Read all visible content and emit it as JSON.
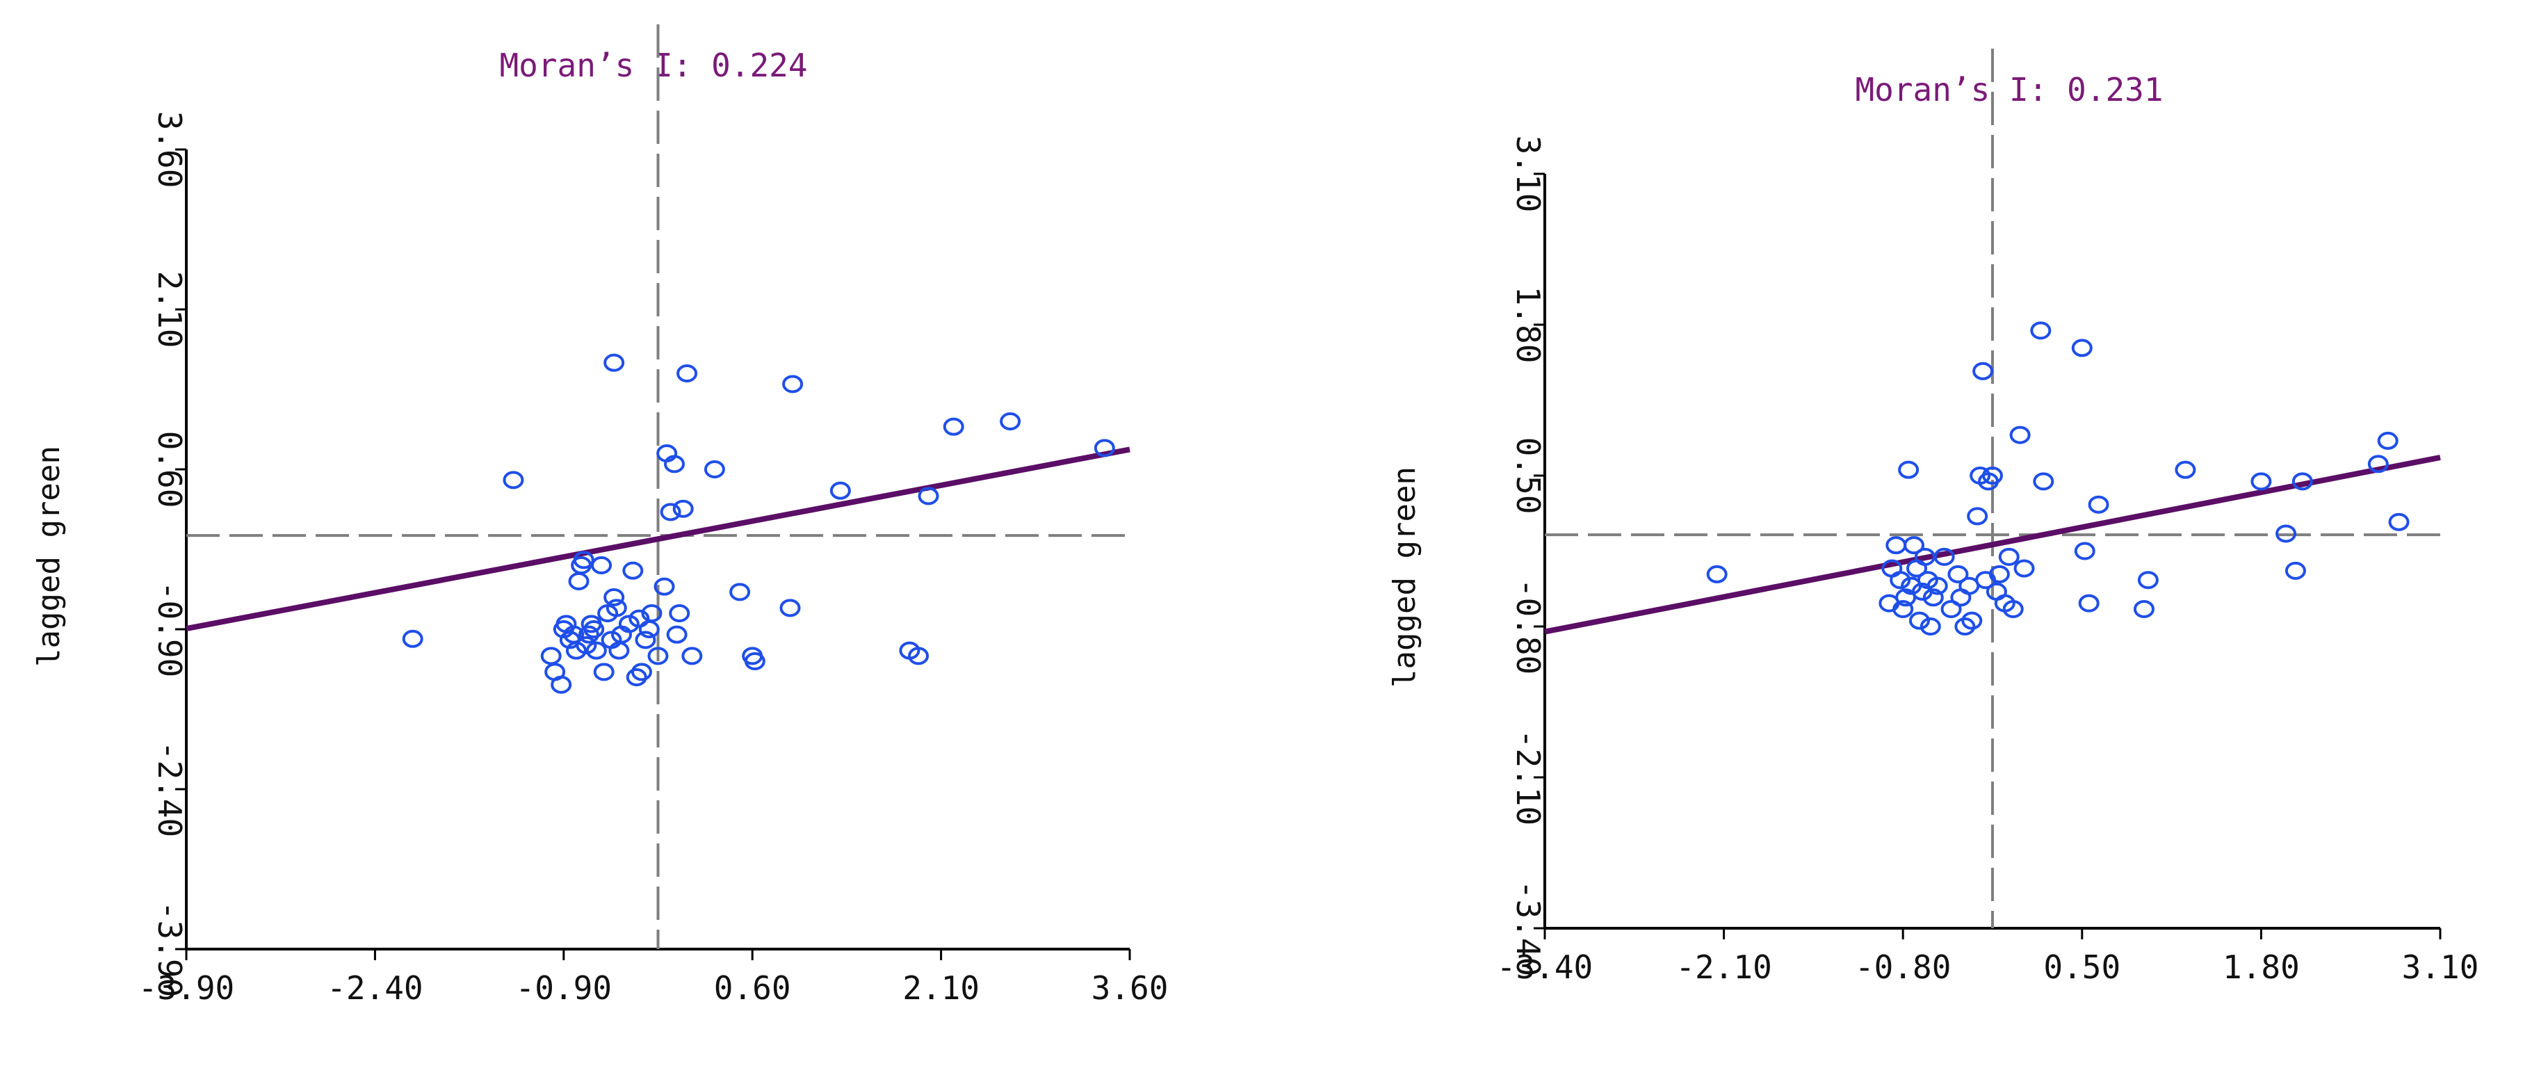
{
  "chart_data": [
    {
      "type": "scatter",
      "title": "Moran’s I: 0.224",
      "xlabel": "",
      "ylabel": "lagged green",
      "xlim": [
        -3.9,
        3.6
      ],
      "ylim": [
        -3.9,
        3.6
      ],
      "x_ticks": [
        "-3.90",
        "-2.40",
        "-0.90",
        "0.60",
        "2.10",
        "3.60"
      ],
      "y_ticks": [
        "-3.90",
        "-2.40",
        "-0.90",
        "0.60",
        "2.10",
        "3.60"
      ],
      "ref_x": -0.15,
      "ref_y": -0.02,
      "fit_line": {
        "slope": 0.224,
        "intercept": -0.02
      },
      "points": [
        [
          -2.1,
          -0.99
        ],
        [
          -1.3,
          0.5
        ],
        [
          -1.0,
          -1.15
        ],
        [
          -0.97,
          -1.3
        ],
        [
          -0.92,
          -1.42
        ],
        [
          -0.9,
          -0.9
        ],
        [
          -0.88,
          -0.85
        ],
        [
          -0.85,
          -1.0
        ],
        [
          -0.82,
          -0.95
        ],
        [
          -0.8,
          -1.1
        ],
        [
          -0.78,
          -0.45
        ],
        [
          -0.76,
          -0.3
        ],
        [
          -0.74,
          -0.25
        ],
        [
          -0.72,
          -1.05
        ],
        [
          -0.7,
          -0.95
        ],
        [
          -0.68,
          -0.85
        ],
        [
          -0.66,
          -0.9
        ],
        [
          -0.64,
          -1.1
        ],
        [
          -0.6,
          -0.3
        ],
        [
          -0.58,
          -1.3
        ],
        [
          -0.55,
          -0.75
        ],
        [
          -0.52,
          -1.0
        ],
        [
          -0.5,
          -0.6
        ],
        [
          -0.48,
          -0.7
        ],
        [
          -0.46,
          -1.1
        ],
        [
          -0.44,
          -0.95
        ],
        [
          -0.5,
          1.6
        ],
        [
          -0.38,
          -0.85
        ],
        [
          -0.35,
          -0.35
        ],
        [
          -0.32,
          -1.35
        ],
        [
          -0.3,
          -0.8
        ],
        [
          -0.28,
          -1.3
        ],
        [
          -0.25,
          -1.0
        ],
        [
          -0.22,
          -0.9
        ],
        [
          -0.2,
          -0.75
        ],
        [
          -0.15,
          -1.15
        ],
        [
          -0.1,
          -0.5
        ],
        [
          -0.08,
          0.75
        ],
        [
          -0.05,
          0.2
        ],
        [
          -0.02,
          0.65
        ],
        [
          0.0,
          -0.95
        ],
        [
          0.02,
          -0.75
        ],
        [
          0.05,
          0.23
        ],
        [
          0.08,
          1.5
        ],
        [
          0.12,
          -1.15
        ],
        [
          0.3,
          0.6
        ],
        [
          0.5,
          -0.55
        ],
        [
          0.6,
          -1.15
        ],
        [
          0.62,
          -1.2
        ],
        [
          0.9,
          -0.7
        ],
        [
          0.92,
          1.4
        ],
        [
          1.3,
          0.4
        ],
        [
          1.85,
          -1.1
        ],
        [
          1.92,
          -1.15
        ],
        [
          2.0,
          0.35
        ],
        [
          2.2,
          1.0
        ],
        [
          2.65,
          1.05
        ],
        [
          3.4,
          0.8
        ]
      ]
    },
    {
      "type": "scatter",
      "title": "Moran’s I: 0.231",
      "xlabel": "",
      "ylabel": "lagged green",
      "xlim": [
        -3.4,
        3.1
      ],
      "ylim": [
        -3.4,
        3.1
      ],
      "x_ticks": [
        "-3.40",
        "-2.10",
        "-0.80",
        "0.50",
        "1.80",
        "3.10"
      ],
      "y_ticks": [
        "-3.40",
        "-2.10",
        "-0.80",
        "0.50",
        "1.80",
        "3.10"
      ],
      "ref_x": -0.15,
      "ref_y": -0.01,
      "fit_line": {
        "slope": 0.231,
        "intercept": -0.06
      },
      "points": [
        [
          -2.15,
          -0.35
        ],
        [
          -0.9,
          -0.6
        ],
        [
          -0.88,
          -0.3
        ],
        [
          -0.85,
          -0.1
        ],
        [
          -0.82,
          -0.4
        ],
        [
          -0.8,
          -0.65
        ],
        [
          -0.78,
          -0.55
        ],
        [
          -0.76,
          0.55
        ],
        [
          -0.74,
          -0.45
        ],
        [
          -0.72,
          -0.1
        ],
        [
          -0.7,
          -0.3
        ],
        [
          -0.68,
          -0.75
        ],
        [
          -0.66,
          -0.5
        ],
        [
          -0.64,
          -0.2
        ],
        [
          -0.62,
          -0.4
        ],
        [
          -0.6,
          -0.8
        ],
        [
          -0.58,
          -0.55
        ],
        [
          -0.55,
          -0.45
        ],
        [
          -0.5,
          -0.2
        ],
        [
          -0.45,
          -0.65
        ],
        [
          -0.4,
          -0.35
        ],
        [
          -0.38,
          -0.55
        ],
        [
          -0.35,
          -0.8
        ],
        [
          -0.32,
          -0.45
        ],
        [
          -0.3,
          -0.75
        ],
        [
          -0.26,
          0.15
        ],
        [
          -0.24,
          0.5
        ],
        [
          -0.22,
          1.4
        ],
        [
          -0.2,
          -0.4
        ],
        [
          -0.18,
          0.45
        ],
        [
          -0.15,
          0.5
        ],
        [
          -0.12,
          -0.5
        ],
        [
          -0.1,
          -0.35
        ],
        [
          -0.06,
          -0.6
        ],
        [
          -0.03,
          -0.2
        ],
        [
          0.0,
          -0.65
        ],
        [
          0.05,
          0.85
        ],
        [
          0.08,
          -0.3
        ],
        [
          0.2,
          1.75
        ],
        [
          0.22,
          0.45
        ],
        [
          0.5,
          1.6
        ],
        [
          0.52,
          -0.15
        ],
        [
          0.55,
          -0.6
        ],
        [
          0.62,
          0.25
        ],
        [
          0.95,
          -0.65
        ],
        [
          0.98,
          -0.4
        ],
        [
          1.25,
          0.55
        ],
        [
          1.8,
          0.45
        ],
        [
          1.98,
          0.0
        ],
        [
          2.05,
          -0.32
        ],
        [
          2.1,
          0.45
        ],
        [
          2.65,
          0.6
        ],
        [
          2.72,
          0.8
        ],
        [
          2.8,
          0.1
        ]
      ]
    }
  ]
}
